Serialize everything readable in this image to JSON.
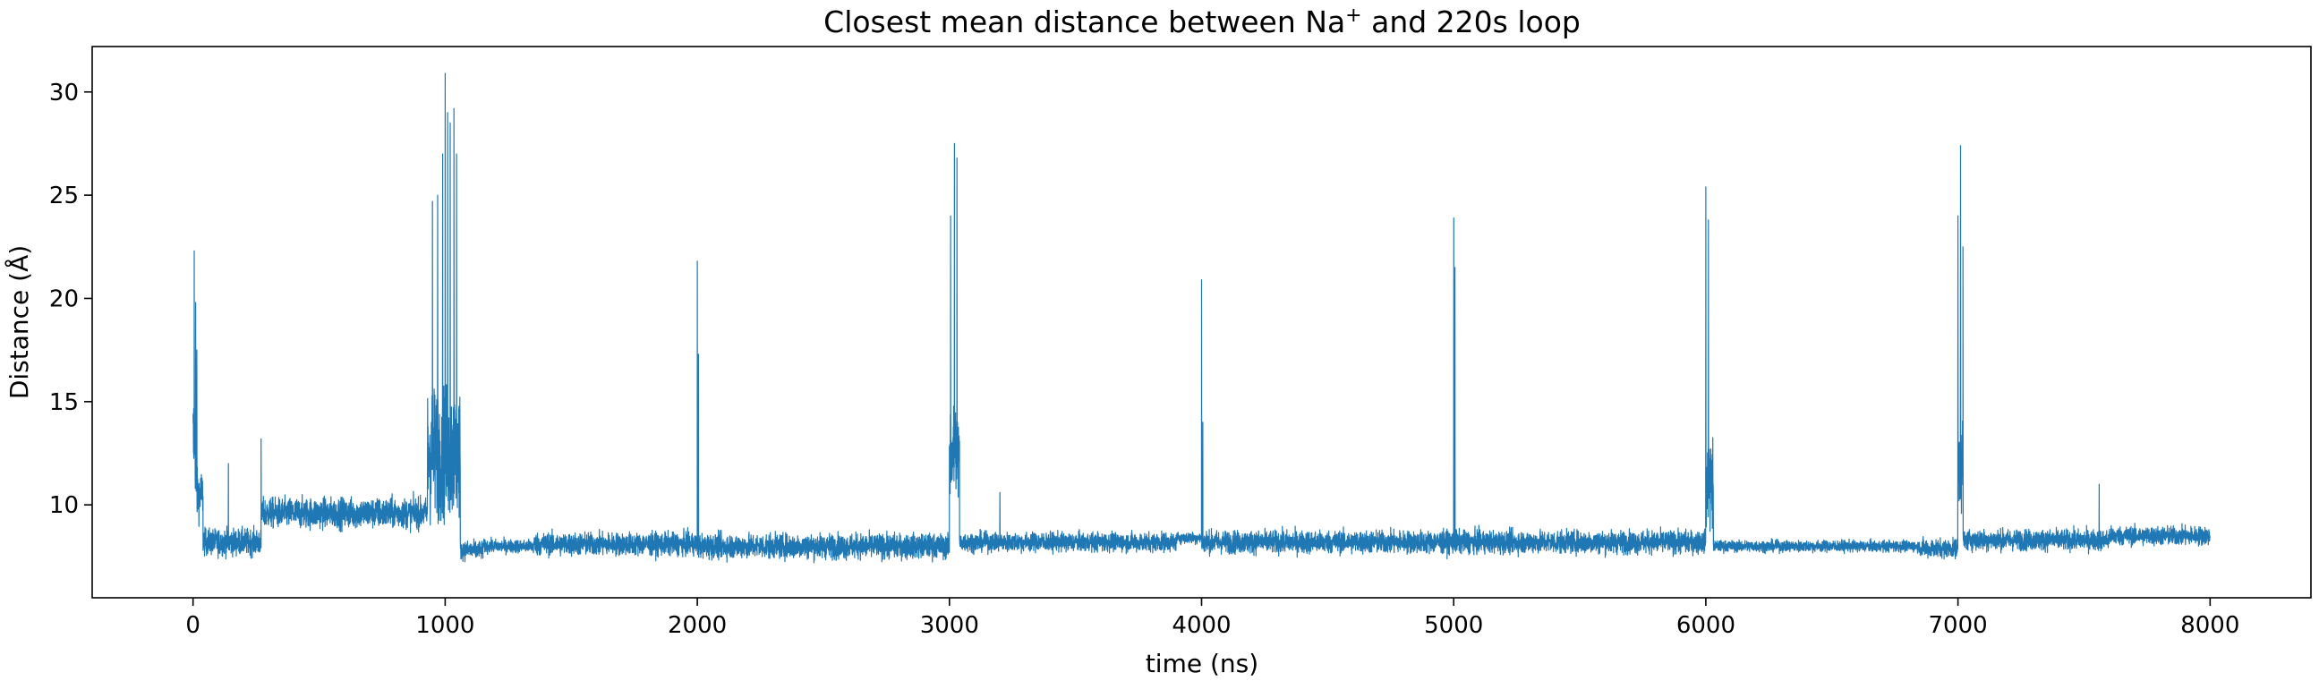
{
  "chart_data": {
    "type": "line",
    "title": "Closest mean distance between Na",
    "title_superscript": "+",
    "title_suffix": " and 220s loop",
    "xlabel": "time (ns)",
    "ylabel": "Distance (Å)",
    "xlim": [
      -400,
      8400
    ],
    "ylim": [
      5.5,
      32.2
    ],
    "xticks": [
      0,
      1000,
      2000,
      3000,
      4000,
      5000,
      6000,
      7000,
      8000
    ],
    "xtick_labels": [
      "0",
      "1000",
      "2000",
      "3000",
      "4000",
      "5000",
      "6000",
      "7000",
      "8000"
    ],
    "yticks": [
      10,
      15,
      20,
      25,
      30
    ],
    "ytick_labels": [
      "10",
      "15",
      "20",
      "25",
      "30"
    ],
    "grid": false,
    "legend": "none",
    "series": [
      {
        "color": "#1f77b4",
        "segments": [
          {
            "x0": 0,
            "x1": 12,
            "base": 13.0,
            "noise": 3.0
          },
          {
            "x0": 12,
            "x1": 40,
            "base": 10.5,
            "noise": 1.3
          },
          {
            "x0": 40,
            "x1": 270,
            "base": 8.2,
            "noise": 0.7
          },
          {
            "x0": 270,
            "x1": 930,
            "base": 9.6,
            "noise": 0.8
          },
          {
            "x0": 930,
            "x1": 1060,
            "base": 12.5,
            "noise": 3.5
          },
          {
            "x0": 1060,
            "x1": 1150,
            "base": 7.8,
            "noise": 0.5
          },
          {
            "x0": 1150,
            "x1": 1350,
            "base": 8.0,
            "noise": 0.35
          },
          {
            "x0": 1350,
            "x1": 2000,
            "base": 8.1,
            "noise": 0.6
          },
          {
            "x0": 2000,
            "x1": 3000,
            "base": 8.0,
            "noise": 0.65
          },
          {
            "x0": 3000,
            "x1": 3040,
            "base": 12.5,
            "noise": 2.5
          },
          {
            "x0": 3040,
            "x1": 3900,
            "base": 8.2,
            "noise": 0.5
          },
          {
            "x0": 3900,
            "x1": 4000,
            "base": 8.4,
            "noise": 0.3
          },
          {
            "x0": 4000,
            "x1": 4900,
            "base": 8.2,
            "noise": 0.6
          },
          {
            "x0": 4900,
            "x1": 5010,
            "base": 8.2,
            "noise": 0.6
          },
          {
            "x0": 5010,
            "x1": 6000,
            "base": 8.2,
            "noise": 0.6
          },
          {
            "x0": 6000,
            "x1": 6030,
            "base": 11.0,
            "noise": 2.5
          },
          {
            "x0": 6030,
            "x1": 6850,
            "base": 8.0,
            "noise": 0.3
          },
          {
            "x0": 6850,
            "x1": 7000,
            "base": 7.9,
            "noise": 0.5
          },
          {
            "x0": 7000,
            "x1": 7020,
            "base": 12.0,
            "noise": 2.5
          },
          {
            "x0": 7020,
            "x1": 7600,
            "base": 8.3,
            "noise": 0.55
          },
          {
            "x0": 7600,
            "x1": 8000,
            "base": 8.5,
            "noise": 0.5
          }
        ],
        "spikes": [
          {
            "x": 5,
            "y": 22.3
          },
          {
            "x": 10,
            "y": 19.8
          },
          {
            "x": 15,
            "y": 17.5
          },
          {
            "x": 140,
            "y": 12.0
          },
          {
            "x": 270,
            "y": 13.2
          },
          {
            "x": 950,
            "y": 24.7
          },
          {
            "x": 970,
            "y": 25.0
          },
          {
            "x": 990,
            "y": 27.0
          },
          {
            "x": 1000,
            "y": 30.9
          },
          {
            "x": 1010,
            "y": 29.0
          },
          {
            "x": 1020,
            "y": 28.5
          },
          {
            "x": 1035,
            "y": 29.2
          },
          {
            "x": 1045,
            "y": 27.0
          },
          {
            "x": 2000,
            "y": 21.8
          },
          {
            "x": 2005,
            "y": 17.3
          },
          {
            "x": 3005,
            "y": 24.0
          },
          {
            "x": 3020,
            "y": 27.5
          },
          {
            "x": 3030,
            "y": 26.8
          },
          {
            "x": 3200,
            "y": 10.6
          },
          {
            "x": 4000,
            "y": 20.9
          },
          {
            "x": 4005,
            "y": 14.0
          },
          {
            "x": 5000,
            "y": 23.9
          },
          {
            "x": 5005,
            "y": 21.5
          },
          {
            "x": 6000,
            "y": 25.4
          },
          {
            "x": 6010,
            "y": 23.8
          },
          {
            "x": 7000,
            "y": 24.0
          },
          {
            "x": 7010,
            "y": 27.4
          },
          {
            "x": 7020,
            "y": 22.5
          },
          {
            "x": 7560,
            "y": 11.0
          }
        ]
      }
    ]
  }
}
